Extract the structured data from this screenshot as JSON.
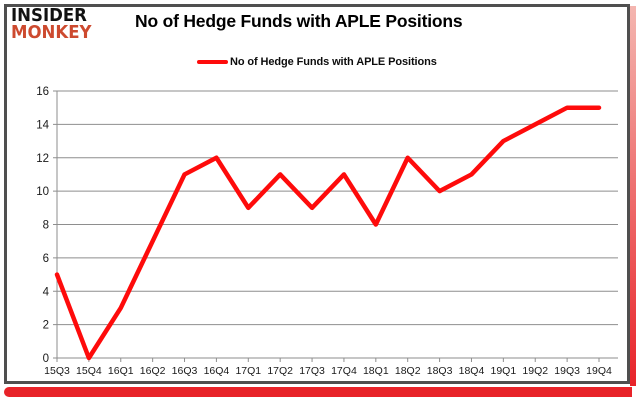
{
  "logo": {
    "line1": "INSIDER",
    "line2": "MONKEY"
  },
  "header": {
    "title": "No of Hedge Funds with APLE Positions"
  },
  "legend": {
    "label": "No of Hedge Funds with APLE Positions"
  },
  "colors": {
    "line_red": "#fe0b0b",
    "accent_red": "#e82329",
    "shadow_pink": "#f4b6b0",
    "logo_orange": "#cd4a2f",
    "frame_border": "#4f4f4f",
    "gridline_gray": "#8e8e8e",
    "axis_text": "#1a1a1a"
  },
  "chart_data": {
    "type": "line",
    "title": "No of Hedge Funds with APLE Positions",
    "categories": [
      "15Q3",
      "15Q4",
      "16Q1",
      "16Q2",
      "16Q3",
      "16Q4",
      "17Q1",
      "17Q2",
      "17Q3",
      "17Q4",
      "18Q1",
      "18Q2",
      "18Q3",
      "18Q4",
      "19Q1",
      "19Q2",
      "19Q3",
      "19Q4"
    ],
    "series": [
      {
        "name": "No of Hedge Funds with APLE Positions",
        "values": [
          5,
          0,
          3,
          7,
          11,
          12,
          9,
          11,
          9,
          11,
          8,
          12,
          10,
          11,
          13,
          14,
          15,
          15
        ],
        "color": "#fe0b0b"
      }
    ],
    "xlabel": "",
    "ylabel": "",
    "ylim": [
      0,
      16
    ],
    "yticks": [
      0,
      2,
      4,
      6,
      8,
      10,
      12,
      14,
      16
    ],
    "grid": true,
    "legend_position": "top"
  }
}
